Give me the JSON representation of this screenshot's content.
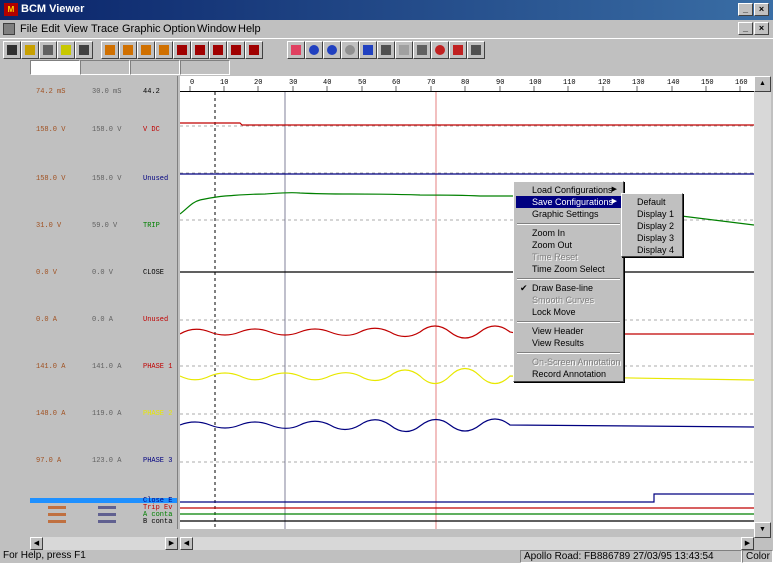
{
  "window": {
    "title": "BCM Viewer",
    "app_icon": "bcm-app-icon"
  },
  "menubar": {
    "items": [
      "File",
      "Edit",
      "View",
      "Trace",
      "Graphic",
      "Option",
      "Window",
      "Help"
    ]
  },
  "toolbar": {
    "buttons": [
      "open-icon",
      "open-folder-icon",
      "print-icon",
      "help-icon",
      "context-help-icon",
      "load-icon",
      "load-icon",
      "load-icon",
      "load-icon",
      "save-icon",
      "save-icon",
      "save-icon",
      "save-icon",
      "save-icon",
      "trace-icon",
      "zoom-in-icon",
      "zoom-out-icon",
      "zoom-disabled-icon",
      "zoom-fit-icon",
      "table-icon",
      "grid-icon",
      "cursor-icon",
      "stop-icon",
      "marker-icon",
      "baseline-icon"
    ]
  },
  "channels": [
    {
      "value1": "74.2 mS",
      "value2": "30.0 mS",
      "name": "44.2",
      "name_color": "#000000"
    },
    {
      "value1": "158.0 V",
      "value2": "158.0 V",
      "name": "V DC",
      "name_color": "#c00000"
    },
    {
      "value1": "158.0 V",
      "value2": "158.0 V",
      "name": "Unused",
      "name_color": "#000080"
    },
    {
      "value1": "31.0 V",
      "value2": "59.0 V",
      "name": "TRIP",
      "name_color": "#008000"
    },
    {
      "value1": "0.0 V",
      "value2": "0.0 V",
      "name": "CLOSE",
      "name_color": "#000000"
    },
    {
      "value1": "0.0 A",
      "value2": "0.0 A",
      "name": "Unused",
      "name_color": "#c00000"
    },
    {
      "value1": "141.0 A",
      "value2": "141.0 A",
      "name": "PHASE 1",
      "name_color": "#c00000"
    },
    {
      "value1": "148.0 A",
      "value2": "119.0 A",
      "name": "PHASE 2",
      "name_color": "#e8e800"
    },
    {
      "value1": "97.0 A",
      "value2": "123.0 A",
      "name": "PHASE 3",
      "name_color": "#000080"
    }
  ],
  "digital_channels": [
    {
      "name": "Close E",
      "color": "#000080"
    },
    {
      "name": "Trip Ev",
      "color": "#c00000"
    },
    {
      "name": "A conta",
      "color": "#008000"
    },
    {
      "name": "B conta",
      "color": "#000000"
    }
  ],
  "ruler": {
    "ticks": [
      "0",
      "10",
      "20",
      "30",
      "40",
      "50",
      "60",
      "70",
      "80",
      "90",
      "100",
      "110",
      "120",
      "130",
      "140",
      "150",
      "160"
    ]
  },
  "colors": {
    "trace_red": "#c00000",
    "trace_navy": "#000080",
    "trace_green": "#008000",
    "trace_yellow": "#e8e800",
    "selection": "#000080",
    "digital_bar": "#1e90ff"
  },
  "context_menu": {
    "items": [
      {
        "label": "Load Configurations",
        "state": "submenu"
      },
      {
        "label": "Save Configurations",
        "state": "highlighted-submenu"
      },
      {
        "label": "Graphic Settings",
        "state": "normal"
      },
      {
        "label": "Zoom In",
        "state": "normal"
      },
      {
        "label": "Zoom Out",
        "state": "normal"
      },
      {
        "label": "Time Reset",
        "state": "disabled"
      },
      {
        "label": "Time Zoom Select",
        "state": "normal"
      },
      {
        "label": "Draw Base-line",
        "state": "checked"
      },
      {
        "label": "Smooth Curves",
        "state": "disabled"
      },
      {
        "label": "Lock Move",
        "state": "normal"
      },
      {
        "label": "View Header",
        "state": "normal"
      },
      {
        "label": "View Results",
        "state": "normal"
      },
      {
        "label": "On-Screen Annotation",
        "state": "disabled"
      },
      {
        "label": "Record Annotation",
        "state": "normal"
      }
    ],
    "submenu": [
      "Default",
      "Display 1",
      "Display 2",
      "Display 3",
      "Display 4"
    ]
  },
  "statusbar": {
    "help": "For Help, press F1",
    "info": "Apollo Road: FB886789  27/03/95  13:43:54",
    "mode": "Color"
  }
}
